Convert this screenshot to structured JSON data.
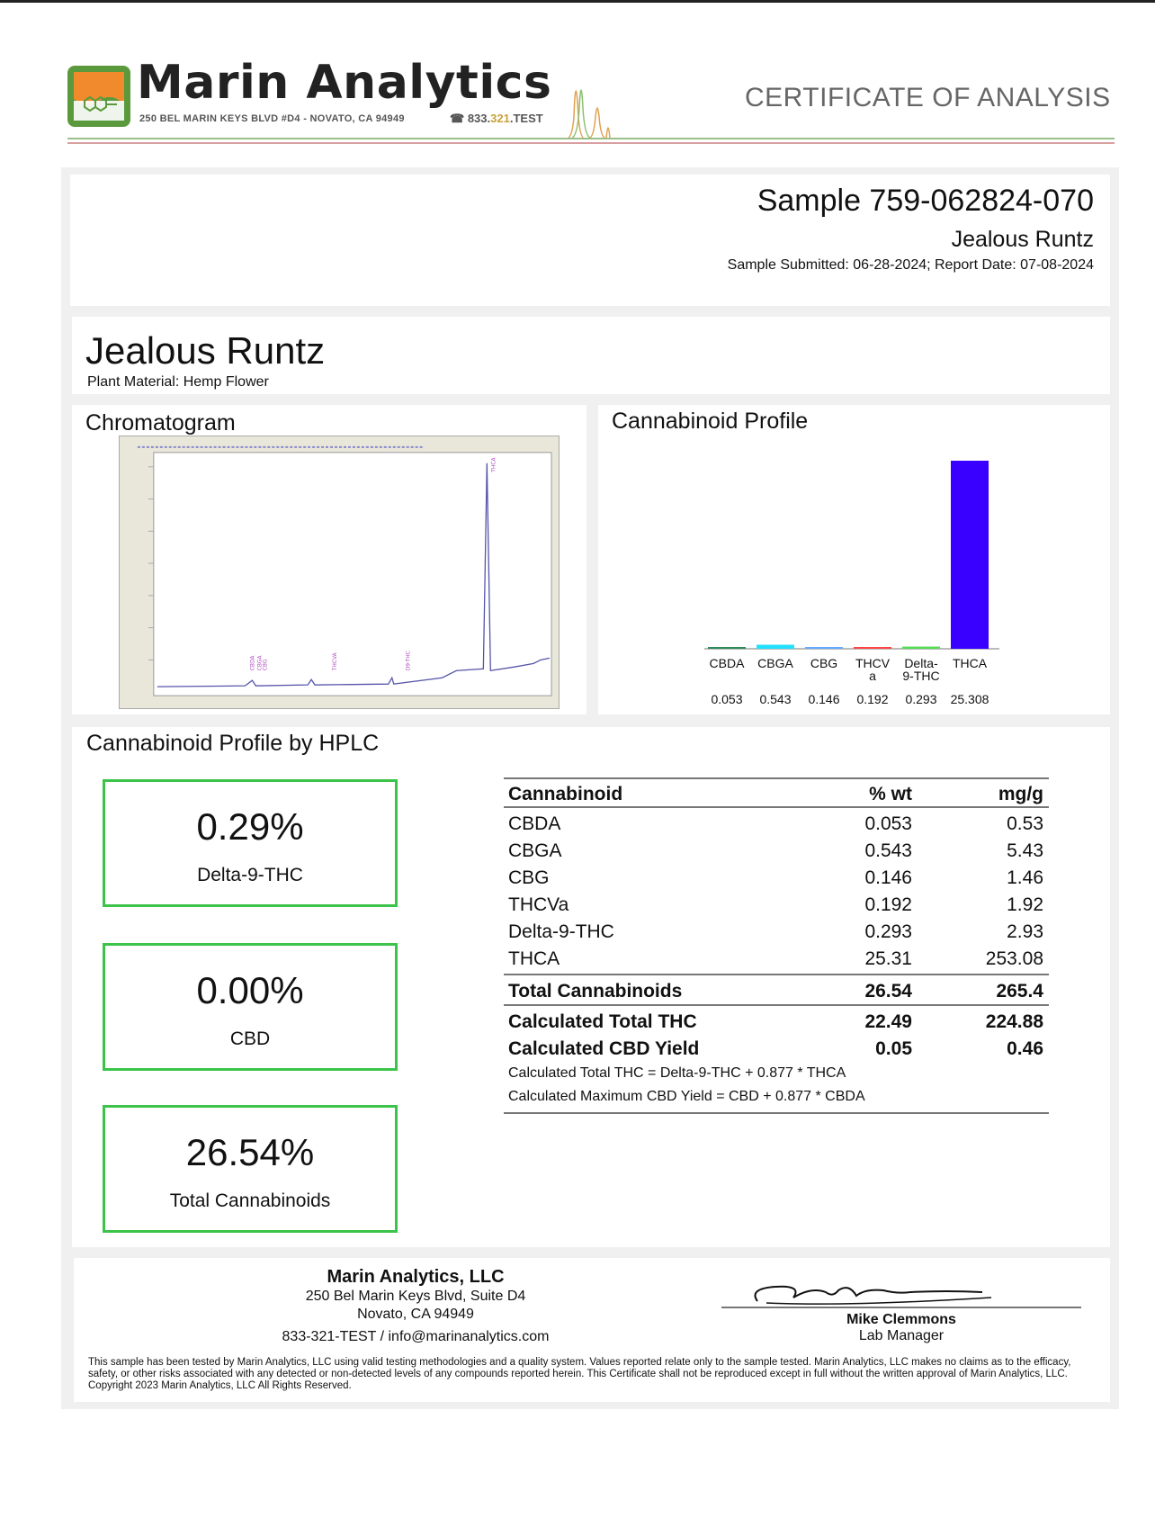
{
  "header": {
    "brand_name": "Marin Analytics",
    "brand_address": "250 BEL MARIN KEYS BLVD #D4 - NOVATO, CA 94949",
    "brand_phone_prefix": "833.",
    "brand_phone_mid": "321",
    "brand_phone_suffix": ".TEST",
    "document_title": "CERTIFICATE OF ANALYSIS",
    "colors": {
      "logo_orange": "#f08a2c",
      "logo_green": "#5a9a3c",
      "rule_green": "#9ac08a",
      "rule_red": "#d8a0a0"
    }
  },
  "sample": {
    "id": "Sample 759-062824-070",
    "name": "Jealous Runtz",
    "dates": "Sample Submitted: 06-28-2024;  Report Date: 07-08-2024"
  },
  "product": {
    "name": "Jealous Runtz",
    "type": "Plant Material: Hemp Flower"
  },
  "chromatogram": {
    "title": "Chromatogram"
  },
  "profile_chart": {
    "title": "Cannabinoid Profile"
  },
  "chart_data": {
    "type": "bar",
    "title": "Cannabinoid Profile",
    "categories": [
      "CBDA",
      "CBGA",
      "CBG",
      "THCVa",
      "Delta-9-THC",
      "THCA"
    ],
    "category_labels": [
      [
        "CBDA"
      ],
      [
        "CBGA"
      ],
      [
        "CBG"
      ],
      [
        "THCV",
        "a"
      ],
      [
        "Delta-",
        "9-THC"
      ],
      [
        "THCA"
      ]
    ],
    "value_labels": [
      "0.053",
      "0.543",
      "0.146",
      "0.192",
      "0.293",
      "25.308"
    ],
    "values": [
      0.053,
      0.543,
      0.146,
      0.192,
      0.293,
      25.308
    ],
    "colors": [
      "#2e8b57",
      "#22e0ff",
      "#66aaff",
      "#ff4444",
      "#55dd55",
      "#3a00ff"
    ],
    "ylim": [
      0,
      25.308
    ]
  },
  "hplc": {
    "title": "Cannabinoid Profile by HPLC",
    "summary": [
      {
        "value": "0.29%",
        "label": "Delta-9-THC"
      },
      {
        "value": "0.00%",
        "label": "CBD"
      },
      {
        "value": "26.54%",
        "label": "Total Cannabinoids"
      }
    ],
    "table": {
      "headers": [
        "Cannabinoid",
        "% wt",
        "mg/g"
      ],
      "rows": [
        [
          "CBDA",
          "0.053",
          "0.53"
        ],
        [
          "CBGA",
          "0.543",
          "5.43"
        ],
        [
          "CBG",
          "0.146",
          "1.46"
        ],
        [
          "THCVa",
          "0.192",
          "1.92"
        ],
        [
          "Delta-9-THC",
          "0.293",
          "2.93"
        ],
        [
          "THCA",
          "25.31",
          "253.08"
        ]
      ],
      "total": [
        "Total Cannabinoids",
        "26.54",
        "265.4"
      ],
      "calculated": [
        [
          "Calculated Total THC",
          "22.49",
          "224.88"
        ],
        [
          "Calculated CBD Yield",
          "0.05",
          "0.46"
        ]
      ],
      "notes": [
        "Calculated Total THC = Delta-9-THC + 0.877 * THCA",
        "Calculated Maximum CBD Yield = CBD + 0.877 * CBDA"
      ]
    }
  },
  "footer": {
    "company": "Marin Analytics, LLC",
    "address1": "250 Bel Marin Keys Blvd, Suite D4",
    "address2": "Novato, CA 94949",
    "contact": "833-321-TEST / info@marinanalytics.com",
    "signer_name": "Mike Clemmons",
    "signer_title": "Lab Manager",
    "disclaimer": "This sample has been tested by Marin Analytics, LLC using valid testing methodologies and a quality system.  Values reported relate only to the sample tested.  Marin Analytics, LLC makes no claims as to the efficacy, safety, or other risks associated with any detected or non-detected levels of any compounds reported herein.  This Certificate shall not be reproduced except in full without the written approval of Marin Analytics, LLC.     Copyright 2023 Marin Analytics, LLC All Rights Reserved."
  }
}
